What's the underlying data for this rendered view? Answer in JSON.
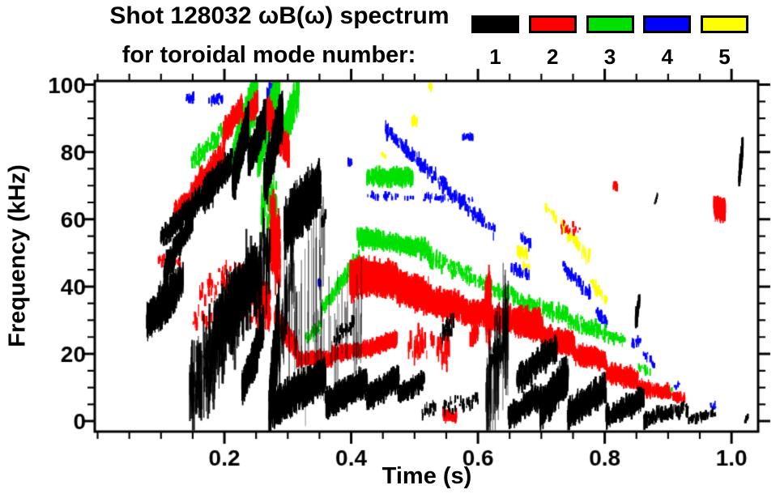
{
  "title": {
    "line1": "Shot 128032 ωB(ω) spectrum",
    "line2": "for toroidal mode number:"
  },
  "legend": {
    "items": [
      {
        "label": "1",
        "color": "#000000"
      },
      {
        "label": "2",
        "color": "#ff0000"
      },
      {
        "label": "3",
        "color": "#00e000"
      },
      {
        "label": "4",
        "color": "#0000ff"
      },
      {
        "label": "5",
        "color": "#ffff00"
      }
    ]
  },
  "axes": {
    "x_label": "Time (s)",
    "y_label": "Frequency (kHz)",
    "x_ticks": [
      0.2,
      0.4,
      0.6,
      0.8,
      1.0
    ],
    "x_tick_labels": [
      "0.2",
      "0.4",
      "0.6",
      "0.8",
      "1.0"
    ],
    "y_ticks": [
      0,
      20,
      40,
      60,
      80,
      100
    ],
    "y_tick_labels": [
      "0",
      "20",
      "40",
      "60",
      "80",
      "100"
    ],
    "x_minor_step": 0.05,
    "y_minor_step": 5,
    "xlim": [
      -0.0045,
      1.042
    ],
    "ylim": [
      -3.1,
      101.1
    ]
  },
  "chart_data": {
    "type": "scatter",
    "title": "Shot 128032 ωB(ω) spectrum for toroidal mode number: 1 2 3 4 5",
    "xlabel": "Time (s)",
    "ylabel": "Frequency (kHz)",
    "xlim": [
      -0.0045,
      1.042
    ],
    "ylim": [
      -3.1,
      101.1
    ],
    "legend_position": "top-right",
    "grid": false,
    "cluster_format": [
      "t_start_s",
      "t_end_s",
      "f_start_kHz",
      "f_end_kHz",
      "f_spread_kHz",
      "n_marks",
      "streak_len_kHz",
      "alpha_optional"
    ],
    "series": [
      {
        "name": "1",
        "mode": 1,
        "color": "#000000",
        "clusters": [
          [
            0.078,
            0.135,
            30,
            42,
            5,
            350,
            4
          ],
          [
            0.088,
            0.125,
            28,
            35,
            3,
            90,
            2
          ],
          [
            0.105,
            0.15,
            44,
            61,
            4,
            260,
            3
          ],
          [
            0.1,
            0.142,
            54,
            63,
            3,
            140,
            2.5
          ],
          [
            0.138,
            0.19,
            61,
            73,
            3.5,
            240,
            3
          ],
          [
            0.168,
            0.212,
            66,
            77,
            4,
            170,
            4
          ],
          [
            0.213,
            0.238,
            71,
            89,
            5,
            380,
            5
          ],
          [
            0.238,
            0.265,
            77,
            90,
            4,
            280,
            5
          ],
          [
            0.263,
            0.292,
            71,
            92,
            6,
            320,
            6
          ],
          [
            0.295,
            0.352,
            57,
            71,
            6,
            260,
            8
          ],
          [
            0.3,
            0.36,
            25,
            48,
            14,
            28,
            26,
            0.55
          ],
          [
            0.185,
            0.252,
            27,
            45,
            7,
            520,
            6
          ],
          [
            0.145,
            0.272,
            8,
            50,
            13,
            300,
            10,
            0.85
          ],
          [
            0.228,
            0.252,
            10,
            20,
            4,
            260,
            4
          ],
          [
            0.243,
            0.262,
            17,
            29,
            5,
            130,
            4
          ],
          [
            0.271,
            0.286,
            2,
            30,
            9,
            280,
            8
          ],
          [
            0.278,
            0.36,
            4,
            14,
            4.5,
            750,
            4
          ],
          [
            0.36,
            0.425,
            5,
            12,
            3.5,
            480,
            3.5
          ],
          [
            0.425,
            0.475,
            7,
            13,
            3,
            360,
            3
          ],
          [
            0.475,
            0.515,
            8,
            12,
            2.5,
            180,
            2.5
          ],
          [
            0.51,
            0.6,
            3,
            6,
            2.5,
            60,
            2
          ],
          [
            0.612,
            0.648,
            5,
            30,
            12,
            70,
            20,
            0.7
          ],
          [
            0.618,
            0.645,
            17,
            24,
            3.5,
            70,
            3
          ],
          [
            0.648,
            0.7,
            1,
            8,
            3,
            260,
            3
          ],
          [
            0.662,
            0.725,
            12,
            22,
            4,
            230,
            3
          ],
          [
            0.698,
            0.742,
            3,
            14,
            5,
            460,
            4
          ],
          [
            0.742,
            0.802,
            2,
            10,
            4,
            420,
            3
          ],
          [
            0.802,
            0.862,
            1,
            7,
            3,
            310,
            2.5
          ],
          [
            0.862,
            0.932,
            0.5,
            4,
            2,
            150,
            2
          ],
          [
            0.932,
            0.975,
            0.5,
            2.5,
            1.2,
            60,
            1.5
          ],
          [
            1.012,
            1.018,
            72,
            82,
            2,
            70,
            4
          ],
          [
            1.021,
            1.026,
            0,
            1,
            0.8,
            8,
            1
          ],
          [
            0.848,
            0.856,
            29,
            37,
            2,
            28,
            3
          ],
          [
            0.879,
            0.885,
            65,
            67,
            1,
            8,
            1.5
          ],
          [
            0.354,
            0.36,
            59,
            62,
            1.5,
            12,
            2
          ],
          [
            0.37,
            0.405,
            24,
            29,
            2,
            32,
            2
          ],
          [
            0.3,
            0.42,
            15,
            30,
            11,
            42,
            18,
            0.5
          ],
          [
            0.284,
            0.31,
            20,
            50,
            12,
            60,
            12,
            0.7
          ],
          [
            0.538,
            0.562,
            24,
            30,
            3,
            26,
            3
          ]
        ]
      },
      {
        "name": "2",
        "mode": 2,
        "color": "#ff0000",
        "clusters": [
          [
            0.118,
            0.16,
            62,
            68,
            2.5,
            130,
            2.5
          ],
          [
            0.148,
            0.2,
            68,
            80,
            3,
            230,
            3
          ],
          [
            0.198,
            0.228,
            85,
            94,
            3,
            190,
            3.5
          ],
          [
            0.228,
            0.252,
            88,
            95,
            3,
            160,
            3
          ],
          [
            0.268,
            0.302,
            92,
            79,
            4,
            210,
            4
          ],
          [
            0.272,
            0.288,
            55,
            50,
            12,
            130,
            6
          ],
          [
            0.16,
            0.252,
            38,
            46,
            5,
            90,
            2.5
          ],
          [
            0.25,
            0.272,
            35,
            33,
            8,
            90,
            4
          ],
          [
            0.28,
            0.315,
            31,
            21,
            3,
            210,
            2.5
          ],
          [
            0.315,
            0.37,
            18.5,
            18.5,
            2,
            260,
            2
          ],
          [
            0.37,
            0.44,
            20,
            22,
            2,
            320,
            2
          ],
          [
            0.44,
            0.472,
            22.5,
            24.5,
            2,
            210,
            2
          ],
          [
            0.398,
            0.42,
            42,
            43,
            4.5,
            160,
            5
          ],
          [
            0.415,
            0.472,
            43,
            42,
            4,
            620,
            4
          ],
          [
            0.472,
            0.522,
            40,
            37,
            4,
            460,
            4
          ],
          [
            0.522,
            0.572,
            36,
            34,
            3.5,
            400,
            3.5
          ],
          [
            0.572,
            0.612,
            33,
            32,
            3,
            260,
            3
          ],
          [
            0.612,
            0.62,
            33,
            33,
            9,
            70,
            9
          ],
          [
            0.62,
            0.657,
            31,
            30,
            3,
            230,
            3
          ],
          [
            0.657,
            0.702,
            30,
            28,
            3.5,
            420,
            3.5
          ],
          [
            0.702,
            0.752,
            25,
            23,
            3,
            360,
            3
          ],
          [
            0.752,
            0.802,
            20,
            18,
            2.5,
            300,
            2.5
          ],
          [
            0.802,
            0.852,
            14.5,
            12.5,
            2.5,
            250,
            2.5
          ],
          [
            0.852,
            0.902,
            10,
            8.5,
            2,
            150,
            2
          ],
          [
            0.902,
            0.927,
            7.5,
            7,
            1.5,
            45,
            1.5
          ],
          [
            0.49,
            0.555,
            23,
            21,
            5,
            60,
            4
          ],
          [
            0.588,
            0.6,
            26,
            26,
            3,
            32,
            3
          ],
          [
            0.972,
            0.99,
            63,
            63,
            2.5,
            130,
            3
          ],
          [
            0.814,
            0.82,
            70,
            70,
            1,
            12,
            1.5
          ],
          [
            0.545,
            0.566,
            1.5,
            1.5,
            1.5,
            45,
            2
          ],
          [
            0.728,
            0.762,
            58,
            57,
            2,
            18,
            1.5
          ],
          [
            0.096,
            0.13,
            48,
            47,
            2,
            25,
            1.5
          ],
          [
            0.15,
            0.25,
            30,
            33,
            4,
            50,
            2.5
          ]
        ]
      },
      {
        "name": "3",
        "mode": 3,
        "color": "#00e000",
        "clusters": [
          [
            0.148,
            0.197,
            77,
            86,
            3,
            90,
            2
          ],
          [
            0.213,
            0.252,
            76,
            99,
            7,
            260,
            5
          ],
          [
            0.252,
            0.287,
            79,
            100,
            6,
            230,
            5
          ],
          [
            0.293,
            0.317,
            84,
            99,
            5,
            130,
            5
          ],
          [
            0.258,
            0.282,
            64,
            64,
            9,
            60,
            6
          ],
          [
            0.353,
            0.412,
            33,
            49,
            2,
            130,
            2
          ],
          [
            0.41,
            0.522,
            55,
            51,
            2.5,
            380,
            2.5
          ],
          [
            0.425,
            0.497,
            72.5,
            72.5,
            2,
            320,
            2.5
          ],
          [
            0.522,
            0.602,
            49,
            42,
            2.5,
            110,
            2
          ],
          [
            0.602,
            0.672,
            41,
            36,
            2.5,
            90,
            2
          ],
          [
            0.672,
            0.742,
            35,
            31,
            2.5,
            110,
            2
          ],
          [
            0.742,
            0.802,
            30,
            26,
            2.5,
            110,
            2
          ],
          [
            0.802,
            0.832,
            25.5,
            24,
            2,
            45,
            1.5
          ],
          [
            0.328,
            0.352,
            24,
            28,
            2,
            32,
            1.5
          ],
          [
            0.853,
            0.872,
            16,
            14.5,
            1.5,
            16,
            1.5
          ],
          [
            0.893,
            0.907,
            9,
            9,
            1,
            9,
            1
          ]
        ]
      },
      {
        "name": "4",
        "mode": 4,
        "color": "#0000ff",
        "clusters": [
          [
            0.14,
            0.152,
            96.5,
            96.5,
            1.5,
            14,
            1.5
          ],
          [
            0.175,
            0.197,
            95.5,
            95.5,
            2,
            28,
            1.5
          ],
          [
            0.267,
            0.283,
            96,
            97,
            3,
            32,
            3
          ],
          [
            0.394,
            0.401,
            77,
            77,
            1,
            12,
            1.5
          ],
          [
            0.453,
            0.502,
            87,
            78,
            2,
            70,
            2
          ],
          [
            0.502,
            0.547,
            78,
            70,
            2,
            60,
            2
          ],
          [
            0.547,
            0.627,
            70,
            56,
            2,
            80,
            2
          ],
          [
            0.425,
            0.592,
            67,
            66,
            1,
            70,
            1.5
          ],
          [
            0.576,
            0.592,
            84.5,
            84.5,
            1,
            14,
            1.5
          ],
          [
            0.653,
            0.682,
            45.5,
            43,
            1.5,
            28,
            2
          ],
          [
            0.666,
            0.684,
            55,
            52,
            1.5,
            16,
            2
          ],
          [
            0.733,
            0.777,
            46,
            38,
            1.5,
            55,
            2
          ],
          [
            0.785,
            0.804,
            33,
            29,
            1.5,
            32,
            2
          ],
          [
            0.843,
            0.857,
            23,
            23.5,
            1.5,
            14,
            1.5
          ],
          [
            0.861,
            0.879,
            20,
            17,
            1.5,
            16,
            1.5
          ],
          [
            0.91,
            0.918,
            10.5,
            10.5,
            1,
            9,
            1
          ],
          [
            0.966,
            0.975,
            4.5,
            4.5,
            1,
            9,
            1
          ],
          [
            0.346,
            0.354,
            41,
            41,
            1,
            9,
            1.5
          ]
        ]
      },
      {
        "name": "5",
        "mode": 5,
        "color": "#ffff00",
        "clusters": [
          [
            0.522,
            0.53,
            99.5,
            99.5,
            1,
            9,
            1.5
          ],
          [
            0.496,
            0.504,
            89,
            89,
            1,
            12,
            2
          ],
          [
            0.449,
            0.456,
            79,
            79,
            1,
            7,
            1
          ],
          [
            0.66,
            0.679,
            51,
            49.5,
            1.5,
            22,
            2
          ],
          [
            0.671,
            0.681,
            46,
            46,
            1,
            9,
            1.5
          ],
          [
            0.706,
            0.777,
            64,
            48,
            2,
            65,
            2
          ],
          [
            0.777,
            0.803,
            41.5,
            36,
            1.5,
            28,
            2
          ]
        ]
      }
    ]
  }
}
